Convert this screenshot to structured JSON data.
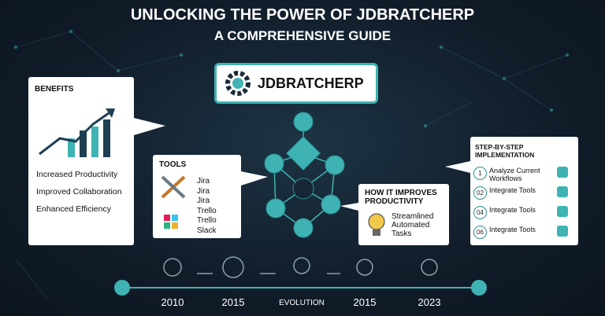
{
  "header": {
    "title": "UNLOCKING THE POWER OF JDBRATCHERP",
    "subtitle": "A COMPREHENSIVE GUIDE"
  },
  "logo": {
    "label": "JDBRATCHERP"
  },
  "benefits": {
    "title": "BENEFITS",
    "items": [
      "Increased Productivity",
      "Improved Collaboration",
      "Enhanced Efficiency"
    ]
  },
  "tools": {
    "title": "TOOLS",
    "items": [
      "Jira",
      "Jira",
      "Jira",
      "Trello",
      "Trello",
      "Slack"
    ]
  },
  "improves": {
    "title": "HOW IT IMPROVES PRODUCTIVITY",
    "text": "Streamlined Automated Tasks"
  },
  "steps": {
    "title": "STEP-BY-STEP IMPLEMENTATION",
    "items": [
      {
        "number": "1",
        "label": "Analyze Current Workflows"
      },
      {
        "number": "02",
        "label": "Integrate Tools"
      },
      {
        "number": "04",
        "label": "Integrate Tools"
      },
      {
        "number": "06",
        "label": "Integrate Tools"
      }
    ]
  },
  "timeline": {
    "labels": [
      "2010",
      "2015",
      "EVOLUTION",
      "2015",
      "2023"
    ]
  }
}
